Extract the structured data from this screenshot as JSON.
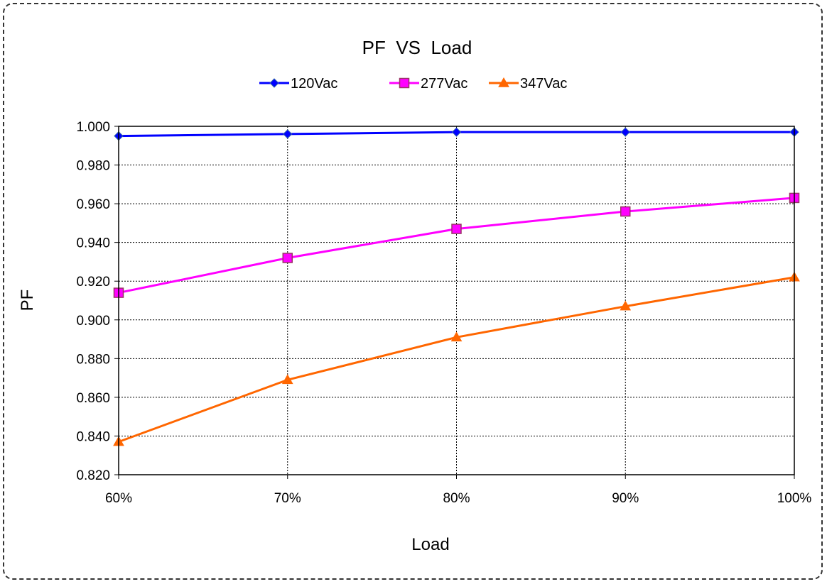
{
  "chart_data": {
    "type": "line",
    "title": "PF  VS  Load",
    "xlabel": "Load",
    "ylabel": "PF",
    "categories": [
      "60%",
      "70%",
      "80%",
      "90%",
      "100%"
    ],
    "ylim": [
      0.82,
      1.0
    ],
    "ytick_labels": [
      "0.820",
      "0.840",
      "0.860",
      "0.880",
      "0.900",
      "0.920",
      "0.940",
      "0.960",
      "0.980",
      "1.000"
    ],
    "grid": "horizontal and vertical dashed",
    "legend_position": "top",
    "series": [
      {
        "name": "120Vac",
        "color": "#0000ff",
        "marker": "diamond",
        "values": [
          0.995,
          0.996,
          0.997,
          0.997,
          0.997
        ]
      },
      {
        "name": "277Vac",
        "color": "#ff00ff",
        "marker": "square",
        "values": [
          0.914,
          0.932,
          0.947,
          0.956,
          0.963
        ]
      },
      {
        "name": "347Vac",
        "color": "#ff6600",
        "marker": "triangle",
        "values": [
          0.837,
          0.869,
          0.891,
          0.907,
          0.922
        ]
      }
    ]
  }
}
